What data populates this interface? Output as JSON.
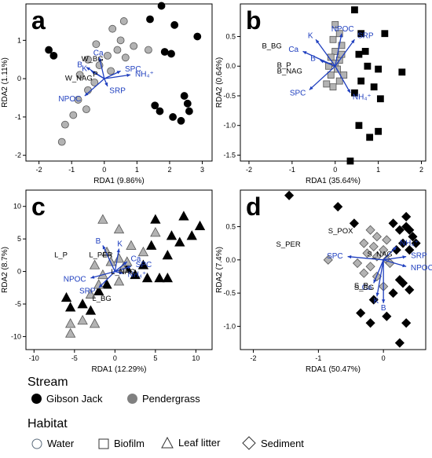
{
  "panels": [
    {
      "letter": "a",
      "xlabel": "RDA1 (9.86%)",
      "ylabel": "RDA2 (1.11%)",
      "xlim": [
        -2.4,
        3.3
      ],
      "ylim": [
        -2.15,
        1.95
      ],
      "xticks": [
        -2,
        -1,
        0,
        1,
        2,
        3
      ],
      "yticks": [
        -2,
        -1,
        0,
        1
      ],
      "marker": "circle",
      "groups": [
        {
          "name": "Gibson Jack",
          "color": "#000000",
          "points": [
            [
              -1.7,
              0.75
            ],
            [
              -1.55,
              0.6
            ],
            [
              1.75,
              1.9
            ],
            [
              1.4,
              1.55
            ],
            [
              2.15,
              1.4
            ],
            [
              2.85,
              1.1
            ],
            [
              1.85,
              0.7
            ],
            [
              2.05,
              0.65
            ],
            [
              1.55,
              -0.7
            ],
            [
              1.7,
              -0.85
            ],
            [
              2.1,
              -1.0
            ],
            [
              2.45,
              -0.45
            ],
            [
              2.55,
              -0.65
            ],
            [
              2.6,
              -0.85
            ],
            [
              2.35,
              -1.1
            ]
          ]
        },
        {
          "name": "Pendergrass",
          "color": "#b3b3b3",
          "points": [
            [
              0.6,
              1.5
            ],
            [
              0.25,
              1.3
            ],
            [
              0.5,
              1.0
            ],
            [
              0.4,
              0.75
            ],
            [
              0.9,
              0.85
            ],
            [
              1.35,
              0.75
            ],
            [
              -0.25,
              0.9
            ],
            [
              0.1,
              0.6
            ],
            [
              0.65,
              0.55
            ],
            [
              -0.5,
              0.5
            ],
            [
              -0.15,
              0.35
            ],
            [
              0.2,
              0.2
            ],
            [
              -0.75,
              0.1
            ],
            [
              -0.3,
              -0.1
            ],
            [
              -0.5,
              -0.3
            ],
            [
              -0.8,
              -0.55
            ],
            [
              -0.55,
              -0.8
            ],
            [
              -0.95,
              -0.95
            ],
            [
              -1.2,
              -1.2
            ],
            [
              -1.3,
              -1.65
            ]
          ]
        }
      ],
      "vectors": [
        {
          "label": "Ca",
          "x": -0.15,
          "y": 0.55
        },
        {
          "label": "B",
          "x": -0.55,
          "y": 0.3
        },
        {
          "label": "K",
          "x": -0.4,
          "y": 0.2
        },
        {
          "label": "SPC",
          "x": 0.5,
          "y": 0.2
        },
        {
          "label": "NH₄⁺",
          "x": 0.8,
          "y": 0.1
        },
        {
          "label": "SRP",
          "x": 0.1,
          "y": -0.2
        },
        {
          "label": "NPOC",
          "x": -0.6,
          "y": -0.45
        }
      ],
      "centroids": [
        {
          "label": "W_BG",
          "x": -0.7,
          "y": 0.45
        },
        {
          "label": "W_NAG",
          "x": -1.2,
          "y": -0.05
        },
        {
          "label": "P",
          "x": -0.35,
          "y": 0.05
        }
      ]
    },
    {
      "letter": "b",
      "xlabel": "RDA1 (35.64%)",
      "ylabel": "RDA2 (0.64%)",
      "xlim": [
        -2.2,
        2.1
      ],
      "ylim": [
        -1.6,
        1.05
      ],
      "xticks": [
        -2,
        -1,
        0,
        1,
        2
      ],
      "yticks": [
        -1.5,
        -1.0,
        -0.5,
        0.0,
        0.5
      ],
      "marker": "square",
      "groups": [
        {
          "name": "Gibson Jack",
          "color": "#000000",
          "points": [
            [
              0.45,
              0.95
            ],
            [
              1.15,
              0.55
            ],
            [
              0.6,
              0.55
            ],
            [
              0.7,
              0.25
            ],
            [
              0.55,
              0.2
            ],
            [
              0.75,
              0.0
            ],
            [
              1.0,
              -0.05
            ],
            [
              1.55,
              -0.1
            ],
            [
              0.6,
              -0.25
            ],
            [
              0.9,
              -0.35
            ],
            [
              0.45,
              -0.45
            ],
            [
              1.05,
              -0.55
            ],
            [
              0.55,
              -1.0
            ],
            [
              0.8,
              -1.2
            ],
            [
              1.0,
              -1.1
            ],
            [
              0.35,
              -1.6
            ]
          ]
        },
        {
          "name": "Pendergrass",
          "color": "#b3b3b3",
          "points": [
            [
              0.0,
              0.7
            ],
            [
              0.1,
              0.55
            ],
            [
              -0.05,
              0.45
            ],
            [
              0.15,
              0.35
            ],
            [
              0.0,
              0.25
            ],
            [
              -0.1,
              0.15
            ],
            [
              0.1,
              0.1
            ],
            [
              0.0,
              0.05
            ],
            [
              -0.15,
              0.0
            ],
            [
              0.05,
              -0.05
            ],
            [
              -0.1,
              -0.15
            ],
            [
              0.1,
              -0.25
            ],
            [
              -0.05,
              -0.35
            ],
            [
              0.2,
              -0.15
            ],
            [
              0.15,
              0.2
            ],
            [
              -0.2,
              -0.3
            ]
          ]
        }
      ],
      "vectors": [
        {
          "label": "K",
          "x": -0.45,
          "y": 0.45
        },
        {
          "label": "Ca",
          "x": -0.75,
          "y": 0.25
        },
        {
          "label": "B",
          "x": -0.35,
          "y": 0.1
        },
        {
          "label": "NPOC",
          "x": 0.15,
          "y": 0.55
        },
        {
          "label": "SRP",
          "x": 0.45,
          "y": 0.45
        },
        {
          "label": "SPC",
          "x": -0.6,
          "y": -0.4
        },
        {
          "label": "NH₄⁺",
          "x": 0.35,
          "y": -0.45
        }
      ],
      "centroids": [
        {
          "label": "B_BG",
          "x": -1.7,
          "y": 0.3
        },
        {
          "label": "B_P",
          "x": -1.35,
          "y": -0.02
        },
        {
          "label": "B_NAG",
          "x": -1.35,
          "y": -0.12
        }
      ]
    },
    {
      "letter": "c",
      "xlabel": "RDA1 (12.29%)",
      "ylabel": "RDA2 (8.7%)",
      "xlim": [
        -11,
        12
      ],
      "ylim": [
        -12,
        12.5
      ],
      "xticks": [
        -10,
        -5,
        0,
        5,
        10
      ],
      "yticks": [
        -10,
        -5,
        0,
        5,
        10
      ],
      "marker": "triangle",
      "groups": [
        {
          "name": "Gibson Jack",
          "color": "#000000",
          "points": [
            [
              5.0,
              8.0
            ],
            [
              8.5,
              8.5
            ],
            [
              10.5,
              7.0
            ],
            [
              9.5,
              5.5
            ],
            [
              8.0,
              4.5
            ],
            [
              7.0,
              5.5
            ],
            [
              6.5,
              2.5
            ],
            [
              4.5,
              4.0
            ],
            [
              3.5,
              1.0
            ],
            [
              2.5,
              -0.5
            ],
            [
              4.0,
              -1.0
            ],
            [
              5.5,
              -1.0
            ],
            [
              6.5,
              -1.0
            ],
            [
              -6.0,
              -4.0
            ],
            [
              -5.5,
              -5.5
            ],
            [
              -4.0,
              -5.0
            ],
            [
              -3.0,
              -6.0
            ],
            [
              -2.0,
              -3.0
            ],
            [
              -1.0,
              -2.0
            ],
            [
              1.5,
              0.5
            ]
          ]
        },
        {
          "name": "Pendergrass",
          "color": "#b3b3b3",
          "points": [
            [
              -1.5,
              8.0
            ],
            [
              0.5,
              6.5
            ],
            [
              2.0,
              4.0
            ],
            [
              3.5,
              3.0
            ],
            [
              5.0,
              6.0
            ],
            [
              -1.0,
              3.0
            ],
            [
              -0.5,
              1.5
            ],
            [
              0.5,
              2.0
            ],
            [
              1.5,
              1.5
            ],
            [
              -2.5,
              1.0
            ],
            [
              -1.5,
              -0.5
            ],
            [
              -2.0,
              -2.0
            ],
            [
              -3.0,
              -3.5
            ],
            [
              -4.0,
              -7.5
            ],
            [
              -5.5,
              -8.0
            ],
            [
              -5.5,
              -9.5
            ],
            [
              -2.5,
              -8.0
            ],
            [
              0.5,
              -1.5
            ],
            [
              1.0,
              0.5
            ]
          ]
        }
      ],
      "vectors": [
        {
          "label": "B",
          "x": -1.5,
          "y": 4.0
        },
        {
          "label": "K",
          "x": 0.5,
          "y": 3.5
        },
        {
          "label": "Ca",
          "x": 1.5,
          "y": 1.5
        },
        {
          "label": "NPOC",
          "x": -3.0,
          "y": -1.0
        },
        {
          "label": "SRP",
          "x": -2.0,
          "y": -2.5
        },
        {
          "label": "SPC",
          "x": 2.0,
          "y": 0.8
        },
        {
          "label": "NH₄⁺",
          "x": 1.0,
          "y": -0.3
        }
      ],
      "centroids": [
        {
          "label": "L_P",
          "x": -7.5,
          "y": 2.2
        },
        {
          "label": "L_PER",
          "x": -3.2,
          "y": 2.2
        },
        {
          "label": "L_BG",
          "x": -2.8,
          "y": -4.5
        },
        {
          "label": "L_NAG",
          "x": -0.5,
          "y": -0.4
        }
      ]
    },
    {
      "letter": "d",
      "xlabel": "RDA1 (50.47%)",
      "ylabel": "RDA2 (7.4%)",
      "xlim": [
        -2.2,
        0.65
      ],
      "ylim": [
        -1.35,
        1.05
      ],
      "xticks": [
        -2,
        -1,
        0
      ],
      "yticks": [
        -1.0,
        -0.5,
        0.0,
        0.5
      ],
      "marker": "diamond",
      "groups": [
        {
          "name": "Gibson Jack",
          "color": "#000000",
          "points": [
            [
              -1.45,
              0.97
            ],
            [
              -0.7,
              0.8
            ],
            [
              -0.45,
              0.55
            ],
            [
              0.35,
              0.65
            ],
            [
              0.15,
              0.55
            ],
            [
              0.35,
              0.5
            ],
            [
              0.4,
              0.45
            ],
            [
              0.25,
              0.45
            ],
            [
              0.45,
              0.35
            ],
            [
              0.3,
              0.25
            ],
            [
              0.5,
              0.25
            ],
            [
              0.2,
              0.15
            ],
            [
              0.4,
              0.15
            ],
            [
              0.25,
              -0.3
            ],
            [
              0.3,
              -0.35
            ],
            [
              0.4,
              -0.45
            ],
            [
              0.15,
              -0.5
            ],
            [
              -0.15,
              -0.6
            ],
            [
              0.05,
              -0.85
            ],
            [
              -0.2,
              -0.95
            ],
            [
              0.35,
              -0.95
            ],
            [
              0.25,
              -1.25
            ],
            [
              -0.35,
              -0.8
            ]
          ]
        },
        {
          "name": "Pendergrass",
          "color": "#b3b3b3",
          "points": [
            [
              -0.2,
              0.45
            ],
            [
              -0.1,
              0.35
            ],
            [
              0.05,
              0.3
            ],
            [
              -0.3,
              0.25
            ],
            [
              -0.15,
              0.2
            ],
            [
              0.0,
              0.15
            ],
            [
              -0.25,
              0.1
            ],
            [
              -0.1,
              0.05
            ],
            [
              0.05,
              0.0
            ],
            [
              -0.4,
              -0.05
            ],
            [
              -0.2,
              -0.1
            ],
            [
              0.1,
              -0.05
            ],
            [
              -0.3,
              -0.2
            ],
            [
              -0.1,
              -0.25
            ],
            [
              -0.85,
              0.0
            ],
            [
              0.0,
              -0.4
            ]
          ]
        }
      ],
      "vectors": [
        {
          "label": "SPC",
          "x": -0.55,
          "y": 0.05
        },
        {
          "label": "NH₄⁺",
          "x": 0.2,
          "y": 0.2
        },
        {
          "label": "SRP",
          "x": 0.35,
          "y": 0.05
        },
        {
          "label": "NPOC",
          "x": 0.35,
          "y": -0.1
        },
        {
          "label": "Ca",
          "x": -0.15,
          "y": -0.35
        },
        {
          "label": "K",
          "x": -0.1,
          "y": -0.55
        },
        {
          "label": "B",
          "x": 0.0,
          "y": -0.65
        }
      ],
      "centroids": [
        {
          "label": "S_PER",
          "x": -1.65,
          "y": 0.2
        },
        {
          "label": "S_POX",
          "x": -0.85,
          "y": 0.4
        },
        {
          "label": "S_NAG",
          "x": -0.25,
          "y": 0.05
        },
        {
          "label": "S_BG",
          "x": -0.45,
          "y": -0.45
        },
        {
          "label": "S_P",
          "x": -0.45,
          "y": -0.42
        }
      ]
    }
  ],
  "legend": {
    "stream_title": "Stream",
    "streams": [
      {
        "label": "Gibson Jack",
        "color": "#000000"
      },
      {
        "label": "Pendergrass",
        "color": "#808080"
      }
    ],
    "habitat_title": "Habitat",
    "habitats": [
      {
        "label": "Water",
        "symbol": "circle"
      },
      {
        "label": "Biofilm",
        "symbol": "square"
      },
      {
        "label": "Leaf litter",
        "symbol": "triangle"
      },
      {
        "label": "Sediment",
        "symbol": "diamond"
      }
    ]
  },
  "vector_color": "#1f3fbf"
}
